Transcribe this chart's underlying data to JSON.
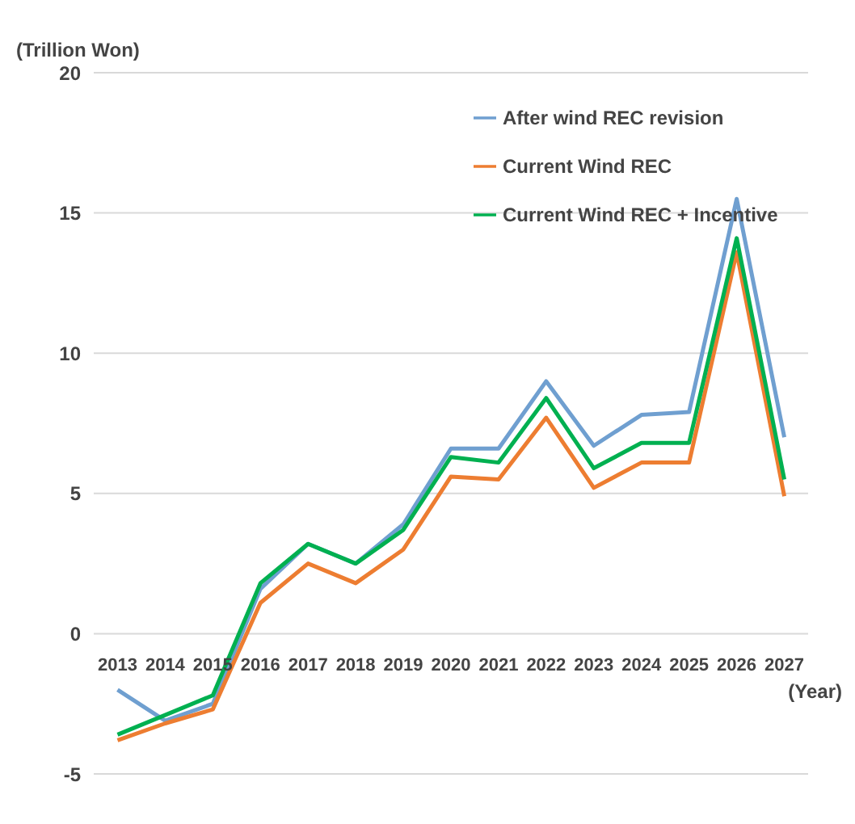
{
  "chart_data": {
    "type": "line",
    "xlabel": "(Year)",
    "ylabel": "(Trillion Won)",
    "categories": [
      "2013",
      "2014",
      "2015",
      "2016",
      "2017",
      "2018",
      "2019",
      "2020",
      "2021",
      "2022",
      "2023",
      "2024",
      "2025",
      "2026",
      "2027"
    ],
    "series": [
      {
        "name": "After wind REC revision",
        "color": "#6f9fd0",
        "values": [
          -2.0,
          -3.1,
          -2.5,
          1.6,
          3.2,
          2.5,
          3.9,
          6.6,
          6.6,
          9.0,
          6.7,
          7.8,
          7.9,
          15.5,
          7.0
        ]
      },
      {
        "name": "Current Wind REC",
        "color": "#ed7d31",
        "values": [
          -3.8,
          -3.2,
          -2.7,
          1.1,
          2.5,
          1.8,
          3.0,
          5.6,
          5.5,
          7.7,
          5.2,
          6.1,
          6.1,
          13.6,
          4.9
        ]
      },
      {
        "name": "Current Wind REC + Incentive",
        "color": "#00b050",
        "values": [
          -3.6,
          -2.9,
          -2.2,
          1.8,
          3.2,
          2.5,
          3.7,
          6.3,
          6.1,
          8.4,
          5.9,
          6.8,
          6.8,
          14.1,
          5.5
        ]
      }
    ],
    "ylim": [
      -5,
      20
    ],
    "yticks": [
      -5,
      0,
      5,
      10,
      15,
      20
    ],
    "grid": "y",
    "legend": "top right",
    "marker": "none",
    "line_style": "solid"
  }
}
